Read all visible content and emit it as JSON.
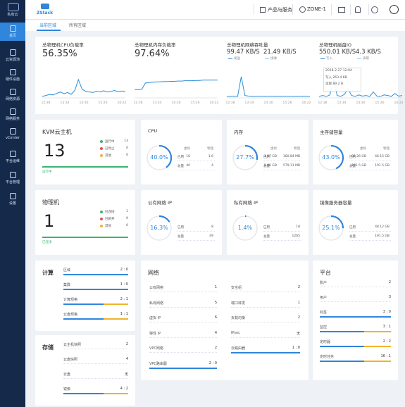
{
  "sidebar": {
    "logo": "私有云",
    "items": [
      "首页",
      "云资源池",
      "硬件设施",
      "网络资源",
      "网络服务",
      "vCenter",
      "平台运维",
      "平台管理",
      "设置"
    ]
  },
  "topbar": {
    "brand": "ZStack",
    "menu": "产品与服务",
    "zone": "ZONE-1"
  },
  "tabs": [
    "当前区域",
    "所有区域"
  ],
  "monitors": [
    {
      "type": "line",
      "title": "总物理机CPU负载率",
      "readings": [
        {
          "value": "56.35%"
        }
      ],
      "xticks": [
        "12:38",
        "13:34",
        "14:30",
        "15:26",
        "16:22"
      ],
      "ylim": [
        0,
        100
      ],
      "series": [
        {
          "color": "#2a8fd8",
          "values": [
            5,
            8,
            12,
            10,
            15,
            20,
            14,
            18,
            12,
            25,
            62,
            30,
            22,
            20,
            18,
            22,
            20,
            24,
            20,
            22,
            25,
            21,
            23,
            20
          ]
        }
      ]
    },
    {
      "type": "line",
      "title": "总物理机内存负载率",
      "readings": [
        {
          "value": "97.64%"
        }
      ],
      "xticks": [
        "12:38",
        "13:34",
        "14:30",
        "15:26",
        "16:22"
      ],
      "ylim": [
        0,
        100
      ],
      "series": [
        {
          "color": "#2a8fd8",
          "values": [
            28,
            28,
            29,
            50,
            52,
            53,
            54,
            54,
            55,
            55,
            56,
            56,
            57,
            57,
            58,
            58,
            58,
            59,
            59,
            60,
            60,
            60,
            60,
            60
          ]
        }
      ]
    },
    {
      "type": "line",
      "title": "总物理机网络吞吐量",
      "readings": [
        {
          "value": "99.47 KB/S",
          "name": "发送"
        },
        {
          "value": "21.49 KB/S",
          "name": "接收"
        }
      ],
      "xticks": [
        "12:38",
        "13:34",
        "14:30",
        "15:26",
        "16:22"
      ],
      "ylim": [
        0,
        100
      ],
      "series": [
        {
          "color": "#2a8fd8",
          "values": [
            5,
            5,
            6,
            5,
            72,
            8,
            6,
            5,
            5,
            6,
            5,
            5,
            6,
            5,
            5,
            5,
            6,
            5,
            5,
            5,
            5,
            6,
            5,
            5
          ]
        }
      ]
    },
    {
      "type": "line",
      "title": "总物理机磁盘IO",
      "readings": [
        {
          "value": "550.01 KB/S",
          "name": "写入"
        },
        {
          "value": "4.3 KB/S",
          "name": "读取"
        }
      ],
      "xticks": [
        "12:38",
        "13:34",
        "14:30",
        "15:26",
        "16:22"
      ],
      "ylim": [
        0,
        100
      ],
      "series": [
        {
          "color": "#2a8fd8",
          "values": [
            5,
            8,
            5,
            10,
            62,
            8,
            5,
            12,
            30,
            8,
            5,
            10,
            6,
            8,
            5,
            20,
            6,
            5,
            10,
            8,
            5,
            15,
            6,
            8
          ]
        }
      ],
      "tooltip": [
        "2018-2-27 12:04",
        "写入 263.4 KB",
        "读取 89.2 B"
      ]
    }
  ],
  "counts": [
    {
      "title": "KVM云主机",
      "total": 13,
      "legend": [
        {
          "label": "运行中",
          "count": 13,
          "color": "#3cb371"
        },
        {
          "label": "已停止",
          "count": 0,
          "color": "#e0505a"
        },
        {
          "label": "其他",
          "count": 0,
          "color": "#f0b429"
        }
      ],
      "bar_label": "运行中"
    },
    {
      "title": "物理机",
      "total": 1,
      "legend": [
        {
          "label": "已连接",
          "count": 1,
          "color": "#3cb371"
        },
        {
          "label": "已断开",
          "count": 0,
          "color": "#e0505a"
        },
        {
          "label": "其他",
          "count": 0,
          "color": "#f0b429"
        }
      ],
      "bar_label": "已连接"
    }
  ],
  "gauges": [
    {
      "title": "CPU",
      "percent": 40.0,
      "percent_label": "40.0%",
      "headers": [
        "虚拟",
        "物理"
      ],
      "rows": [
        {
          "label": "已用",
          "values": [
            "16",
            "1.6"
          ]
        },
        {
          "label": "总量",
          "values": [
            "40",
            "4"
          ]
        }
      ]
    },
    {
      "title": "内存",
      "percent": 27.7,
      "percent_label": "27.7%",
      "headers": [
        "虚拟",
        "物理"
      ],
      "rows": [
        {
          "label": "已用",
          "values": [
            "1.57 GB",
            "160.84 MB"
          ]
        },
        {
          "label": "总量",
          "values": [
            "5.66 GB",
            "579.11 MB"
          ]
        }
      ]
    },
    {
      "title": "主存储容量",
      "percent": 43.0,
      "percent_label": "43.0%",
      "headers": [
        "虚拟",
        "物理"
      ],
      "rows": [
        {
          "label": "已用",
          "values": [
            "82.26 GB",
            "46.15 GB"
          ]
        },
        {
          "label": "总量",
          "values": [
            "191.5 GB",
            "191.5 GB"
          ]
        }
      ]
    },
    {
      "title": "公有网络 IP",
      "percent": 16.3,
      "percent_label": "16.3%",
      "rows": [
        {
          "label": "已用",
          "values": [
            "8"
          ]
        },
        {
          "label": "总量",
          "values": [
            "49"
          ]
        }
      ]
    },
    {
      "title": "私有网络 IP",
      "percent": 1.4,
      "percent_label": "1.4%",
      "rows": [
        {
          "label": "已用",
          "values": [
            "18"
          ]
        },
        {
          "label": "总量",
          "values": [
            "1265"
          ]
        }
      ]
    },
    {
      "title": "镜像服务器容量",
      "percent": 25.1,
      "percent_label": "25.1%",
      "rows": [
        {
          "label": "已用",
          "values": [
            "48.12 GB"
          ]
        },
        {
          "label": "总量",
          "values": [
            "191.5 GB"
          ]
        }
      ]
    }
  ],
  "summaries": [
    {
      "title": "计算",
      "items": [
        {
          "label": "区域",
          "value": "2 : 0"
        },
        {
          "label": "集群",
          "value": "1 : 0"
        },
        {
          "label": "计算规格",
          "value": "2 : 1"
        },
        {
          "label": "云盘规格",
          "value": "1 : 1"
        }
      ]
    },
    {
      "title": "存储",
      "items": [
        {
          "label": "云主机快照",
          "value": "2"
        },
        {
          "label": "云盘快照",
          "value": "4"
        },
        {
          "label": "云盘",
          "value": "无"
        },
        {
          "label": "镜像",
          "value": "4 : 2"
        }
      ]
    },
    {
      "title": "网络",
      "items": [
        {
          "label": "公有网络",
          "value": "1"
        },
        {
          "label": "私有网络",
          "value": "5"
        },
        {
          "label": "虚拟 IP",
          "value": "6"
        },
        {
          "label": "弹性 IP",
          "value": "4"
        },
        {
          "label": "VPC网络",
          "value": "2"
        },
        {
          "label": "VPC路由器",
          "value": "2 : 0"
        },
        {
          "label": "安全组",
          "value": "2"
        },
        {
          "label": "端口转发",
          "value": "1"
        },
        {
          "label": "负载均衡",
          "value": "2"
        },
        {
          "label": "IPsec",
          "value": "无"
        },
        {
          "label": "云路由器",
          "value": "1 : 0"
        }
      ]
    },
    {
      "title": "平台",
      "items": [
        {
          "label": "账户",
          "value": "2"
        },
        {
          "label": "用户",
          "value": "3"
        },
        {
          "label": "标签",
          "value": "3 : 0"
        },
        {
          "label": "监控",
          "value": "3 : 1"
        },
        {
          "label": "定时器",
          "value": "2 : 2"
        },
        {
          "label": "定时任务",
          "value": "16 : 1"
        }
      ]
    }
  ]
}
